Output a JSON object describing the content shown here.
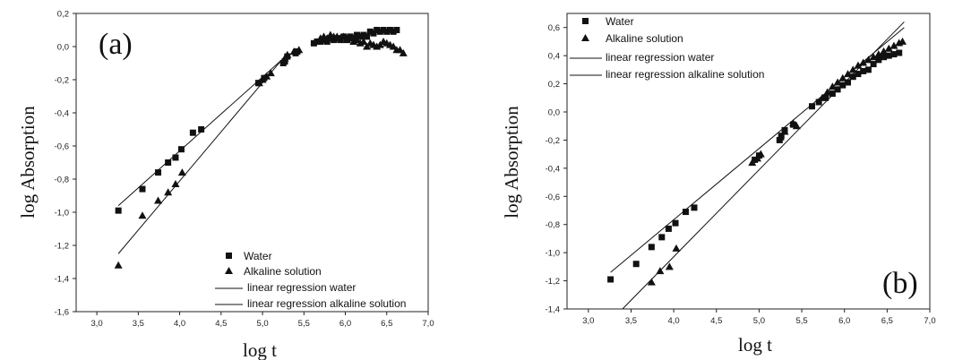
{
  "chart_data": [
    {
      "type": "scatter",
      "panel_label": "(a)",
      "xlabel": "log t",
      "ylabel": "log Absorption",
      "xlim": [
        2.75,
        7.0
      ],
      "ylim": [
        -1.6,
        0.2
      ],
      "xticks": [
        "3,0",
        "3,5",
        "4,0",
        "4,5",
        "5,0",
        "5,5",
        "6,0",
        "6,5",
        "7,0"
      ],
      "yticks": [
        "0,2",
        "0,0",
        "-0,2",
        "-0,4",
        "-0,6",
        "-0,8",
        "-1,0",
        "-1,2",
        "-1,4",
        "-1,6"
      ],
      "legend_position": "bottom-right",
      "legend": [
        "Water",
        "Alkaline solution",
        "linear regression water",
        "linear regression alkaline solution"
      ],
      "series": [
        {
          "name": "Water",
          "marker": "square",
          "x": [
            3.26,
            3.55,
            3.74,
            3.86,
            3.95,
            4.02,
            4.16,
            4.26,
            4.95,
            5.02,
            5.25,
            5.27,
            5.3,
            5.4,
            5.42,
            5.62,
            5.66,
            5.7,
            5.74,
            5.78,
            5.82,
            5.86,
            5.9,
            5.94,
            5.98,
            6.02,
            6.06,
            6.1,
            6.14,
            6.18,
            6.22,
            6.26,
            6.3,
            6.34,
            6.38,
            6.42,
            6.46,
            6.5,
            6.54,
            6.58,
            6.62
          ],
          "y": [
            -0.99,
            -0.86,
            -0.76,
            -0.7,
            -0.67,
            -0.62,
            -0.52,
            -0.5,
            -0.22,
            -0.19,
            -0.1,
            -0.09,
            -0.06,
            -0.04,
            -0.03,
            0.02,
            0.03,
            0.03,
            0.04,
            0.03,
            0.05,
            0.04,
            0.05,
            0.04,
            0.06,
            0.05,
            0.06,
            0.05,
            0.07,
            0.06,
            0.07,
            0.06,
            0.09,
            0.08,
            0.1,
            0.09,
            0.1,
            0.09,
            0.1,
            0.09,
            0.1
          ]
        },
        {
          "name": "Alkaline solution",
          "marker": "triangle",
          "x": [
            3.26,
            3.55,
            3.74,
            3.86,
            3.95,
            4.03,
            4.96,
            5.0,
            5.05,
            5.1,
            5.27,
            5.3,
            5.38,
            5.44,
            5.7,
            5.74,
            5.78,
            5.82,
            5.86,
            5.9,
            5.94,
            5.98,
            6.02,
            6.06,
            6.1,
            6.14,
            6.18,
            6.22,
            6.26,
            6.3,
            6.34,
            6.38,
            6.42,
            6.46,
            6.5,
            6.54,
            6.58,
            6.62,
            6.66,
            6.7
          ],
          "y": [
            -1.32,
            -1.02,
            -0.93,
            -0.88,
            -0.83,
            -0.76,
            -0.22,
            -0.2,
            -0.18,
            -0.16,
            -0.07,
            -0.05,
            -0.03,
            -0.02,
            0.05,
            0.06,
            0.05,
            0.07,
            0.06,
            0.06,
            0.05,
            0.06,
            0.04,
            0.05,
            0.03,
            0.04,
            0.02,
            0.03,
            0.0,
            0.02,
            0.01,
            0.0,
            0.01,
            0.03,
            0.02,
            0.01,
            0.0,
            -0.02,
            -0.02,
            -0.04
          ]
        },
        {
          "name": "linear regression water",
          "type": "line",
          "x": [
            3.26,
            5.3
          ],
          "y": [
            -0.96,
            -0.05
          ]
        },
        {
          "name": "linear regression alkaline solution",
          "type": "line",
          "x": [
            3.26,
            5.3
          ],
          "y": [
            -1.25,
            -0.04
          ]
        }
      ]
    },
    {
      "type": "scatter",
      "panel_label": "(b)",
      "xlabel": "log t",
      "ylabel": "log Absorption",
      "xlim": [
        2.75,
        7.0
      ],
      "ylim": [
        -1.4,
        0.7
      ],
      "xticks": [
        "3,0",
        "3,5",
        "4,0",
        "4,5",
        "5,0",
        "5,5",
        "6,0",
        "6,5",
        "7,0"
      ],
      "yticks": [
        "0,6",
        "0,4",
        "0,2",
        "0,0",
        "-0,2",
        "-0,4",
        "-0,6",
        "-0,8",
        "-1,0",
        "-1,2",
        "-1,4"
      ],
      "legend_position": "top-left",
      "legend": [
        "Water",
        "Alkaline solution",
        "linear regression water",
        "linear regression alkaline solution"
      ],
      "series": [
        {
          "name": "Water",
          "marker": "square",
          "x": [
            3.26,
            3.56,
            3.74,
            3.86,
            3.94,
            4.02,
            4.14,
            4.24,
            4.95,
            5.0,
            5.24,
            5.26,
            5.3,
            5.4,
            5.62,
            5.7,
            5.78,
            5.86,
            5.92,
            5.98,
            6.04,
            6.1,
            6.16,
            6.22,
            6.28,
            6.34,
            6.4,
            6.46,
            6.52,
            6.58,
            6.64
          ],
          "y": [
            -1.19,
            -1.08,
            -0.96,
            -0.89,
            -0.83,
            -0.79,
            -0.71,
            -0.68,
            -0.34,
            -0.31,
            -0.2,
            -0.17,
            -0.13,
            -0.09,
            0.04,
            0.07,
            0.1,
            0.13,
            0.16,
            0.19,
            0.21,
            0.25,
            0.27,
            0.29,
            0.3,
            0.34,
            0.37,
            0.39,
            0.4,
            0.41,
            0.42
          ]
        },
        {
          "name": "Alkaline solution",
          "marker": "triangle",
          "x": [
            3.74,
            3.84,
            3.95,
            4.03,
            4.92,
            4.98,
            5.02,
            5.25,
            5.3,
            5.4,
            5.44,
            5.74,
            5.8,
            5.86,
            5.92,
            5.98,
            6.04,
            6.1,
            6.16,
            6.22,
            6.28,
            6.34,
            6.4,
            6.46,
            6.52,
            6.58,
            6.64,
            6.68
          ],
          "y": [
            -1.21,
            -1.13,
            -1.1,
            -0.97,
            -0.36,
            -0.33,
            -0.3,
            -0.18,
            -0.14,
            -0.08,
            -0.1,
            0.1,
            0.14,
            0.18,
            0.21,
            0.24,
            0.27,
            0.3,
            0.33,
            0.35,
            0.37,
            0.39,
            0.41,
            0.43,
            0.45,
            0.47,
            0.49,
            0.5
          ]
        },
        {
          "name": "linear regression water",
          "type": "line",
          "x": [
            3.26,
            6.7
          ],
          "y": [
            -1.14,
            0.6
          ]
        },
        {
          "name": "linear regression alkaline solution",
          "type": "line",
          "x": [
            3.4,
            6.7
          ],
          "y": [
            -1.4,
            0.64
          ]
        }
      ]
    }
  ]
}
